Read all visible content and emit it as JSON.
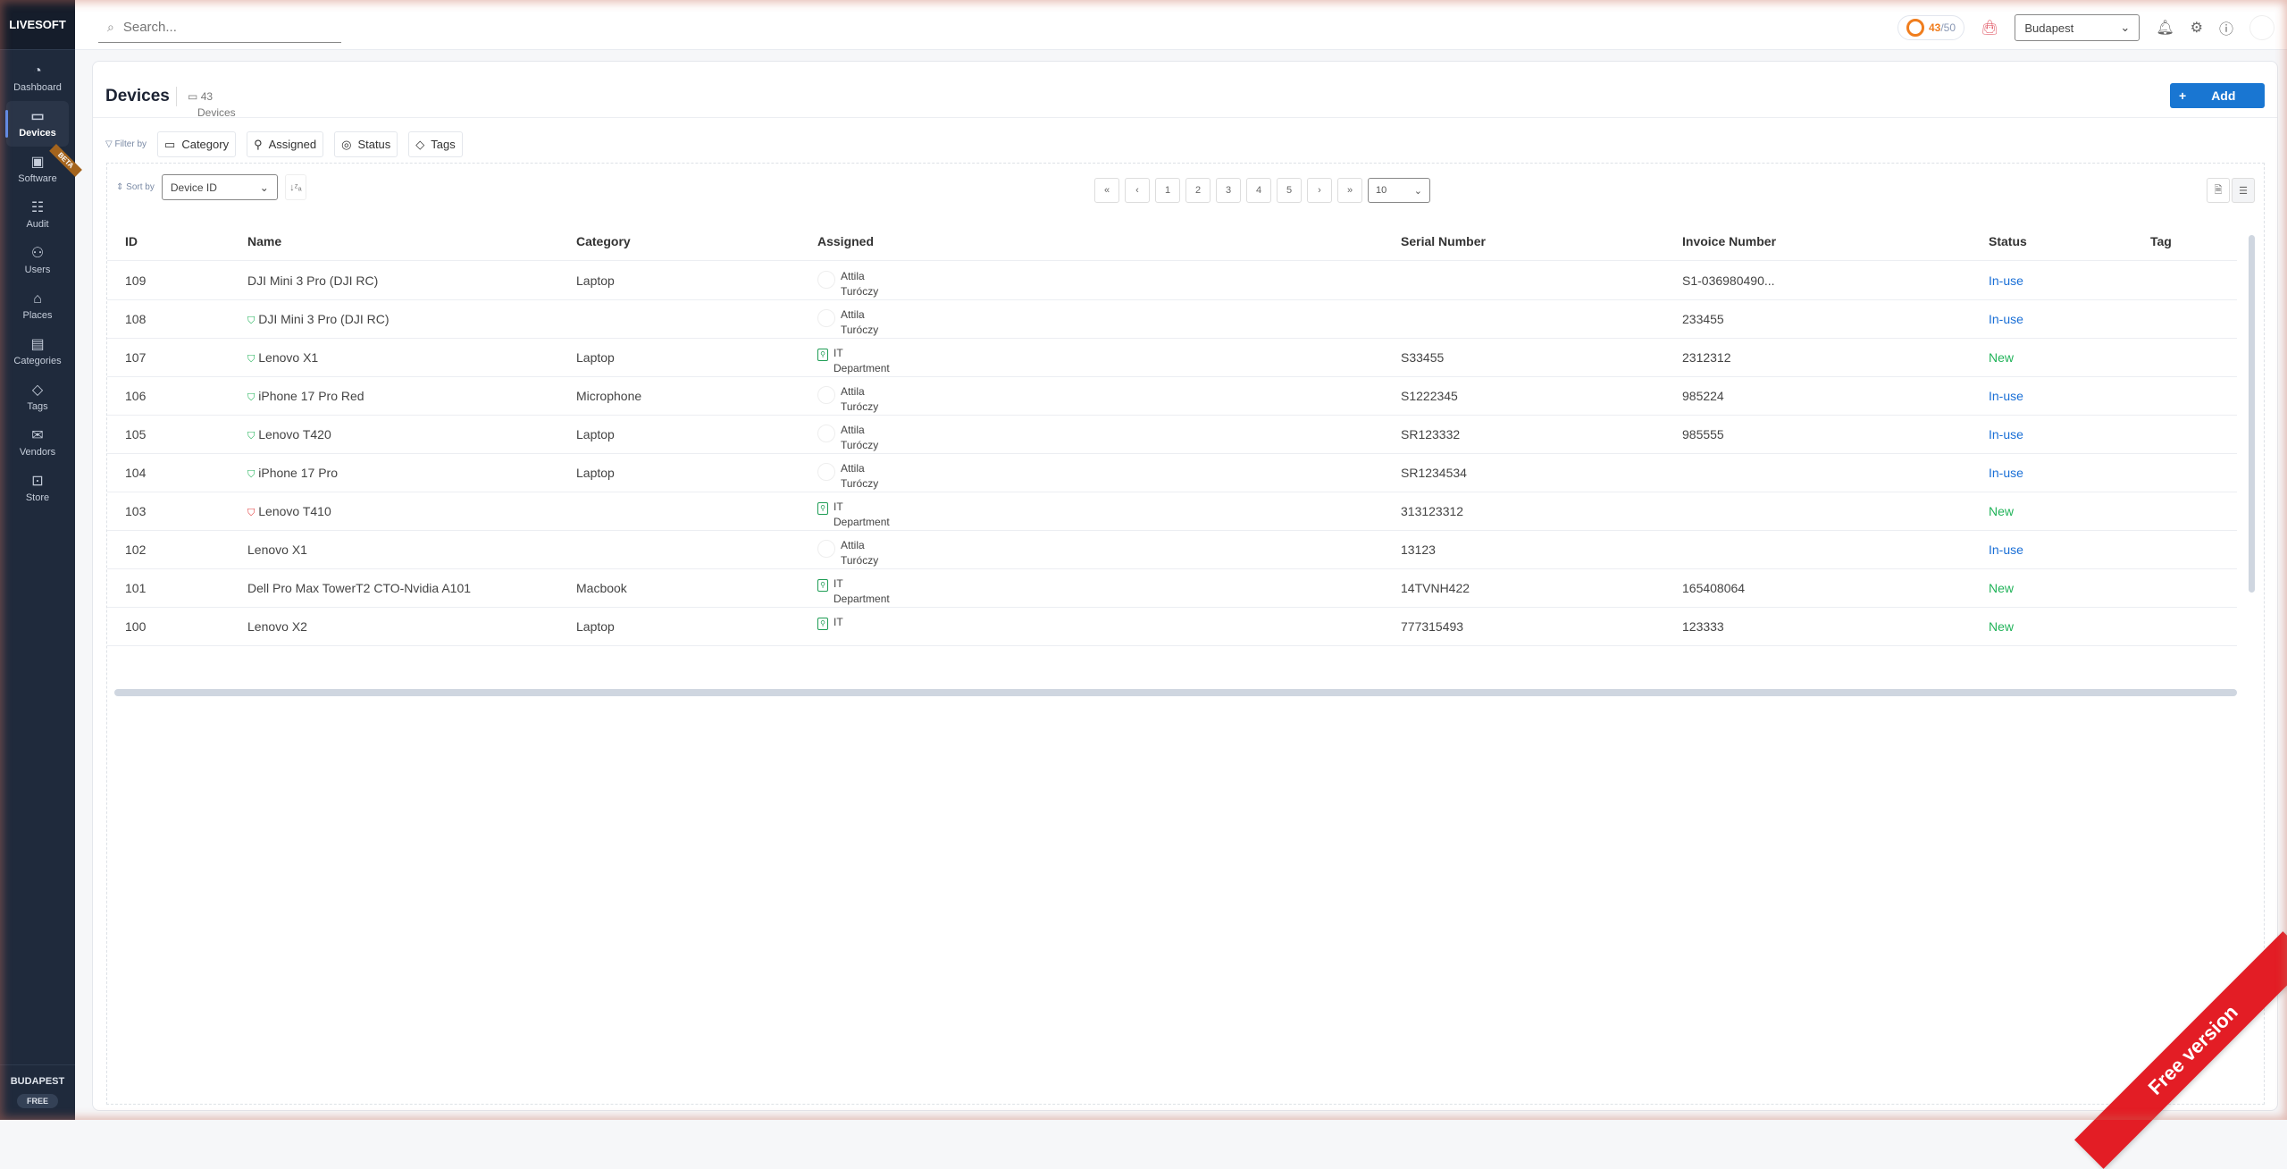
{
  "sidebar": {
    "logo": "LIVESOFT",
    "items": [
      {
        "label": "Dashboard",
        "icon": "◔",
        "name": "dashboard"
      },
      {
        "label": "Devices",
        "icon": "▭",
        "name": "devices",
        "active": true
      },
      {
        "label": "Software",
        "icon": "▣",
        "name": "software",
        "badge": "BETA"
      },
      {
        "label": "Audit",
        "icon": "☷",
        "name": "audit"
      },
      {
        "label": "Users",
        "icon": "⚇",
        "name": "users"
      },
      {
        "label": "Places",
        "icon": "⌂",
        "name": "places"
      },
      {
        "label": "Categories",
        "icon": "▤",
        "name": "categories"
      },
      {
        "label": "Tags",
        "icon": "◇",
        "name": "tags"
      },
      {
        "label": "Vendors",
        "icon": "✉",
        "name": "vendors"
      },
      {
        "label": "Store",
        "icon": "⊡",
        "name": "store"
      }
    ],
    "place": "BUDAPEST",
    "plan": "FREE"
  },
  "topbar": {
    "search_placeholder": "Search...",
    "quota_used": "43",
    "quota_total": "/50",
    "location": "Budapest"
  },
  "page": {
    "title": "Devices",
    "count": "43",
    "count_label": "Devices",
    "add_label": "Add"
  },
  "filters": {
    "label": "Filter by",
    "chips": [
      "Category",
      "Assigned",
      "Status",
      "Tags"
    ]
  },
  "sort": {
    "label": "Sort by",
    "value": "Device ID"
  },
  "pagination": {
    "pages": [
      "1",
      "2",
      "3",
      "4",
      "5"
    ],
    "page_size": "10"
  },
  "table": {
    "columns": [
      "ID",
      "Name",
      "Category",
      "Assigned",
      "Serial Number",
      "Invoice Number",
      "Status",
      "Tag"
    ],
    "rows": [
      {
        "id": "109",
        "name": "DJI Mini 3 Pro (DJI RC)",
        "shield": "",
        "category": "Laptop",
        "assigned": [
          "Attila",
          "Turóczy"
        ],
        "type": "user",
        "serial": "",
        "invoice": "S1-036980490...",
        "status": "In-use"
      },
      {
        "id": "108",
        "name": "DJI Mini 3 Pro (DJI RC)",
        "shield": "ok",
        "category": "",
        "assigned": [
          "Attila",
          "Turóczy"
        ],
        "type": "user",
        "serial": "",
        "invoice": "233455",
        "status": "In-use"
      },
      {
        "id": "107",
        "name": "Lenovo X1",
        "shield": "ok",
        "category": "Laptop",
        "assigned": [
          "IT",
          "Department"
        ],
        "type": "dept",
        "serial": "S33455",
        "invoice": "2312312",
        "status": "New"
      },
      {
        "id": "106",
        "name": "iPhone 17 Pro Red",
        "shield": "ok",
        "category": "Microphone",
        "assigned": [
          "Attila",
          "Turóczy"
        ],
        "type": "user",
        "serial": "S1222345",
        "invoice": "985224",
        "status": "In-use"
      },
      {
        "id": "105",
        "name": "Lenovo T420",
        "shield": "ok",
        "category": "Laptop",
        "assigned": [
          "Attila",
          "Turóczy"
        ],
        "type": "user",
        "serial": "SR123332",
        "invoice": "985555",
        "status": "In-use"
      },
      {
        "id": "104",
        "name": "iPhone 17 Pro",
        "shield": "ok",
        "category": "Laptop",
        "assigned": [
          "Attila",
          "Turóczy"
        ],
        "type": "user",
        "serial": "SR1234534",
        "invoice": "",
        "status": "In-use"
      },
      {
        "id": "103",
        "name": "Lenovo T410",
        "shield": "bad",
        "category": "",
        "assigned": [
          "IT",
          "Department"
        ],
        "type": "dept",
        "serial": "313123312",
        "invoice": "",
        "status": "New"
      },
      {
        "id": "102",
        "name": "Lenovo X1",
        "shield": "",
        "category": "",
        "assigned": [
          "Attila",
          "Turóczy"
        ],
        "type": "user",
        "serial": "13123",
        "invoice": "",
        "status": "In-use"
      },
      {
        "id": "101",
        "name": "Dell Pro Max TowerT2 CTO-Nvidia A101",
        "shield": "",
        "category": "Macbook",
        "assigned": [
          "IT",
          "Department"
        ],
        "type": "dept",
        "serial": "14TVNH422",
        "invoice": "165408064",
        "status": "New"
      },
      {
        "id": "100",
        "name": "Lenovo X2",
        "shield": "",
        "category": "Laptop",
        "assigned": [
          "IT",
          ""
        ],
        "type": "dept",
        "serial": "777315493",
        "invoice": "123333",
        "status": "New"
      }
    ]
  },
  "ribbon": "Free version",
  "colors": {
    "sidebar": "#1f2a3c",
    "accent": "#1976d2",
    "in_use": "#1a6fd6",
    "new": "#22b35a",
    "ribbon": "#e31d25",
    "quota": "#f07d1d"
  }
}
